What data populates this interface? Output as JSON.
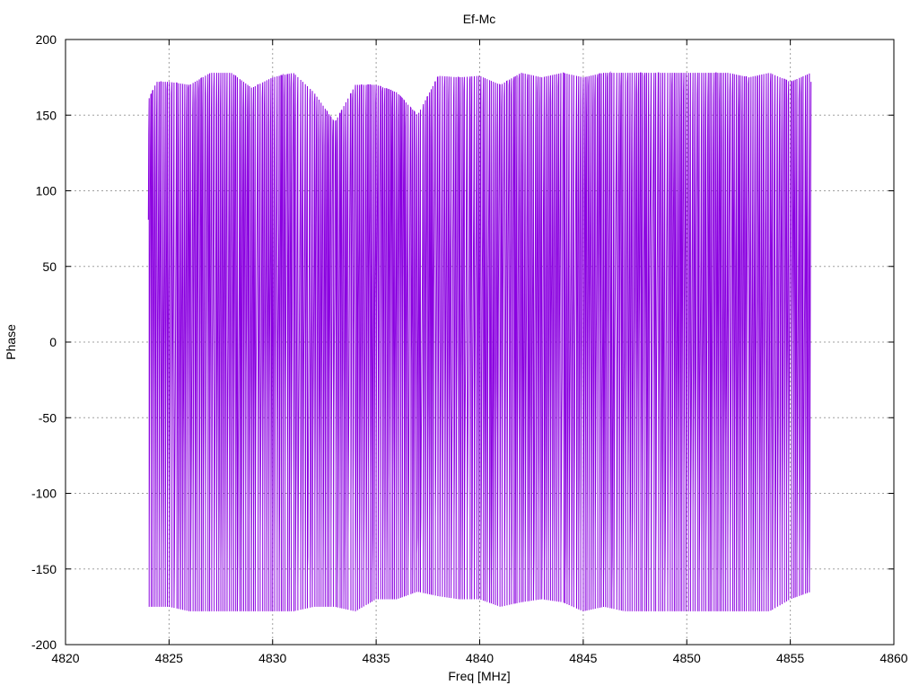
{
  "chart_data": {
    "type": "line",
    "title": "Ef-Mc",
    "xlabel": "Freq [MHz]",
    "ylabel": "Phase",
    "xlim": [
      4820,
      4860
    ],
    "ylim": [
      -200,
      200
    ],
    "x_ticks": [
      4820,
      4825,
      4830,
      4835,
      4840,
      4845,
      4850,
      4855,
      4860
    ],
    "y_ticks": [
      -200,
      -150,
      -100,
      -50,
      0,
      50,
      100,
      150,
      200
    ],
    "x_tick_labels": [
      "4820",
      "4825",
      "4830",
      "4835",
      "4840",
      "4845",
      "4850",
      "4855",
      "4860"
    ],
    "y_tick_labels": [
      "-200",
      "-150",
      "-100",
      "-50",
      "0",
      "50",
      "100",
      "150",
      "200"
    ],
    "grid": true,
    "series_color": "#8a00e0",
    "series": [
      {
        "name": "",
        "x_start": 4824.0,
        "x_end": 4856.0,
        "phase_wrap": [
          -180,
          180
        ],
        "upper_envelope": [
          [
            4824.0,
            160
          ],
          [
            4824.4,
            172
          ],
          [
            4825.0,
            172
          ],
          [
            4826.0,
            170
          ],
          [
            4827.0,
            178
          ],
          [
            4828.0,
            178
          ],
          [
            4829.0,
            168
          ],
          [
            4830.0,
            175
          ],
          [
            4831.0,
            178
          ],
          [
            4832.0,
            165
          ],
          [
            4833.0,
            145
          ],
          [
            4834.0,
            170
          ],
          [
            4835.0,
            170
          ],
          [
            4836.0,
            165
          ],
          [
            4837.0,
            150
          ],
          [
            4838.0,
            176
          ],
          [
            4839.0,
            175
          ],
          [
            4840.0,
            176
          ],
          [
            4841.0,
            170
          ],
          [
            4842.0,
            178
          ],
          [
            4843.0,
            175
          ],
          [
            4844.0,
            178
          ],
          [
            4845.0,
            175
          ],
          [
            4846.0,
            178
          ],
          [
            4847.0,
            178
          ],
          [
            4848.0,
            178
          ],
          [
            4849.0,
            178
          ],
          [
            4850.0,
            178
          ],
          [
            4851.0,
            178
          ],
          [
            4852.0,
            178
          ],
          [
            4853.0,
            175
          ],
          [
            4854.0,
            178
          ],
          [
            4855.0,
            172
          ],
          [
            4856.0,
            178
          ]
        ],
        "lower_envelope": [
          [
            4824.0,
            -175
          ],
          [
            4825.0,
            -175
          ],
          [
            4826.0,
            -178
          ],
          [
            4827.0,
            -178
          ],
          [
            4828.0,
            -178
          ],
          [
            4829.0,
            -178
          ],
          [
            4830.0,
            -178
          ],
          [
            4831.0,
            -178
          ],
          [
            4832.0,
            -175
          ],
          [
            4833.0,
            -175
          ],
          [
            4834.0,
            -178
          ],
          [
            4835.0,
            -170
          ],
          [
            4836.0,
            -170
          ],
          [
            4837.0,
            -165
          ],
          [
            4838.0,
            -168
          ],
          [
            4839.0,
            -170
          ],
          [
            4840.0,
            -170
          ],
          [
            4841.0,
            -175
          ],
          [
            4842.0,
            -172
          ],
          [
            4843.0,
            -170
          ],
          [
            4844.0,
            -172
          ],
          [
            4845.0,
            -178
          ],
          [
            4846.0,
            -175
          ],
          [
            4847.0,
            -178
          ],
          [
            4848.0,
            -178
          ],
          [
            4849.0,
            -178
          ],
          [
            4850.0,
            -178
          ],
          [
            4851.0,
            -178
          ],
          [
            4852.0,
            -178
          ],
          [
            4853.0,
            -178
          ],
          [
            4854.0,
            -178
          ],
          [
            4855.0,
            -170
          ],
          [
            4856.0,
            -165
          ]
        ]
      }
    ]
  }
}
